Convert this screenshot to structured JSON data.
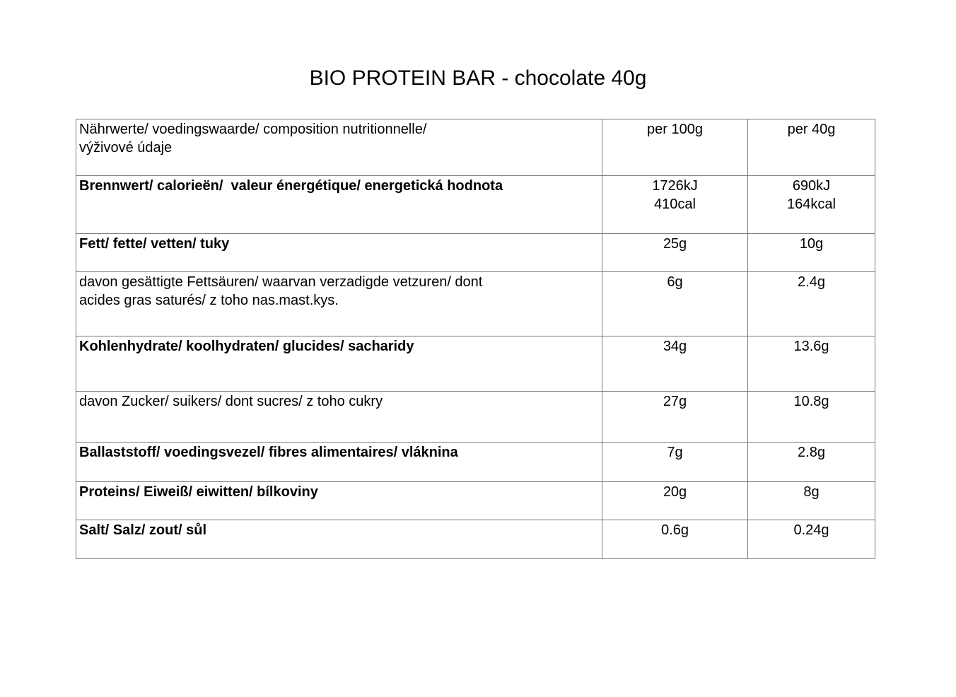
{
  "title": "BIO PROTEIN BAR - chocolate 40g",
  "colors": {
    "background": "#ffffff",
    "text": "#000000",
    "table_border": "#787878"
  },
  "table": {
    "header": {
      "label": "Nährwerte/ voedingswaarde/ composition nutritionnelle/\nvýživové údaje",
      "col1": "per 100g",
      "col2": "per 40g"
    },
    "rows": [
      {
        "label": "Brennwert/ calorieën/  valeur énergétique/ energetická hodnota",
        "bold": true,
        "per100": "1726kJ\n410cal",
        "per40": "690kJ\n164kcal"
      },
      {
        "label": "Fett/ fette/ vetten/ tuky",
        "bold": true,
        "per100": "25g",
        "per40": "10g"
      },
      {
        "label": "davon gesättigte Fettsäuren/ waarvan verzadigde vetzuren/ dont\nacides gras saturés/ z toho nas.mast.kys.",
        "bold": false,
        "per100": "6g",
        "per40": "2.4g"
      },
      {
        "label": "Kohlenhydrate/ koolhydraten/ glucides/ sacharidy",
        "bold": true,
        "per100": "34g",
        "per40": "13.6g"
      },
      {
        "label": "davon Zucker/ suikers/ dont sucres/ z toho cukry",
        "bold": false,
        "per100": "27g",
        "per40": "10.8g"
      },
      {
        "label": "Ballaststoff/ voedingsvezel/ fibres alimentaires/ vláknina",
        "bold": true,
        "per100": "7g",
        "per40": "2.8g"
      },
      {
        "label": "Proteins/ Eiweiß/ eiwitten/ bílkoviny",
        "bold": true,
        "per100": "20g",
        "per40": "8g"
      },
      {
        "label": "Salt/ Salz/ zout/ sůl",
        "bold": true,
        "per100": "0.6g",
        "per40": "0.24g"
      }
    ]
  }
}
